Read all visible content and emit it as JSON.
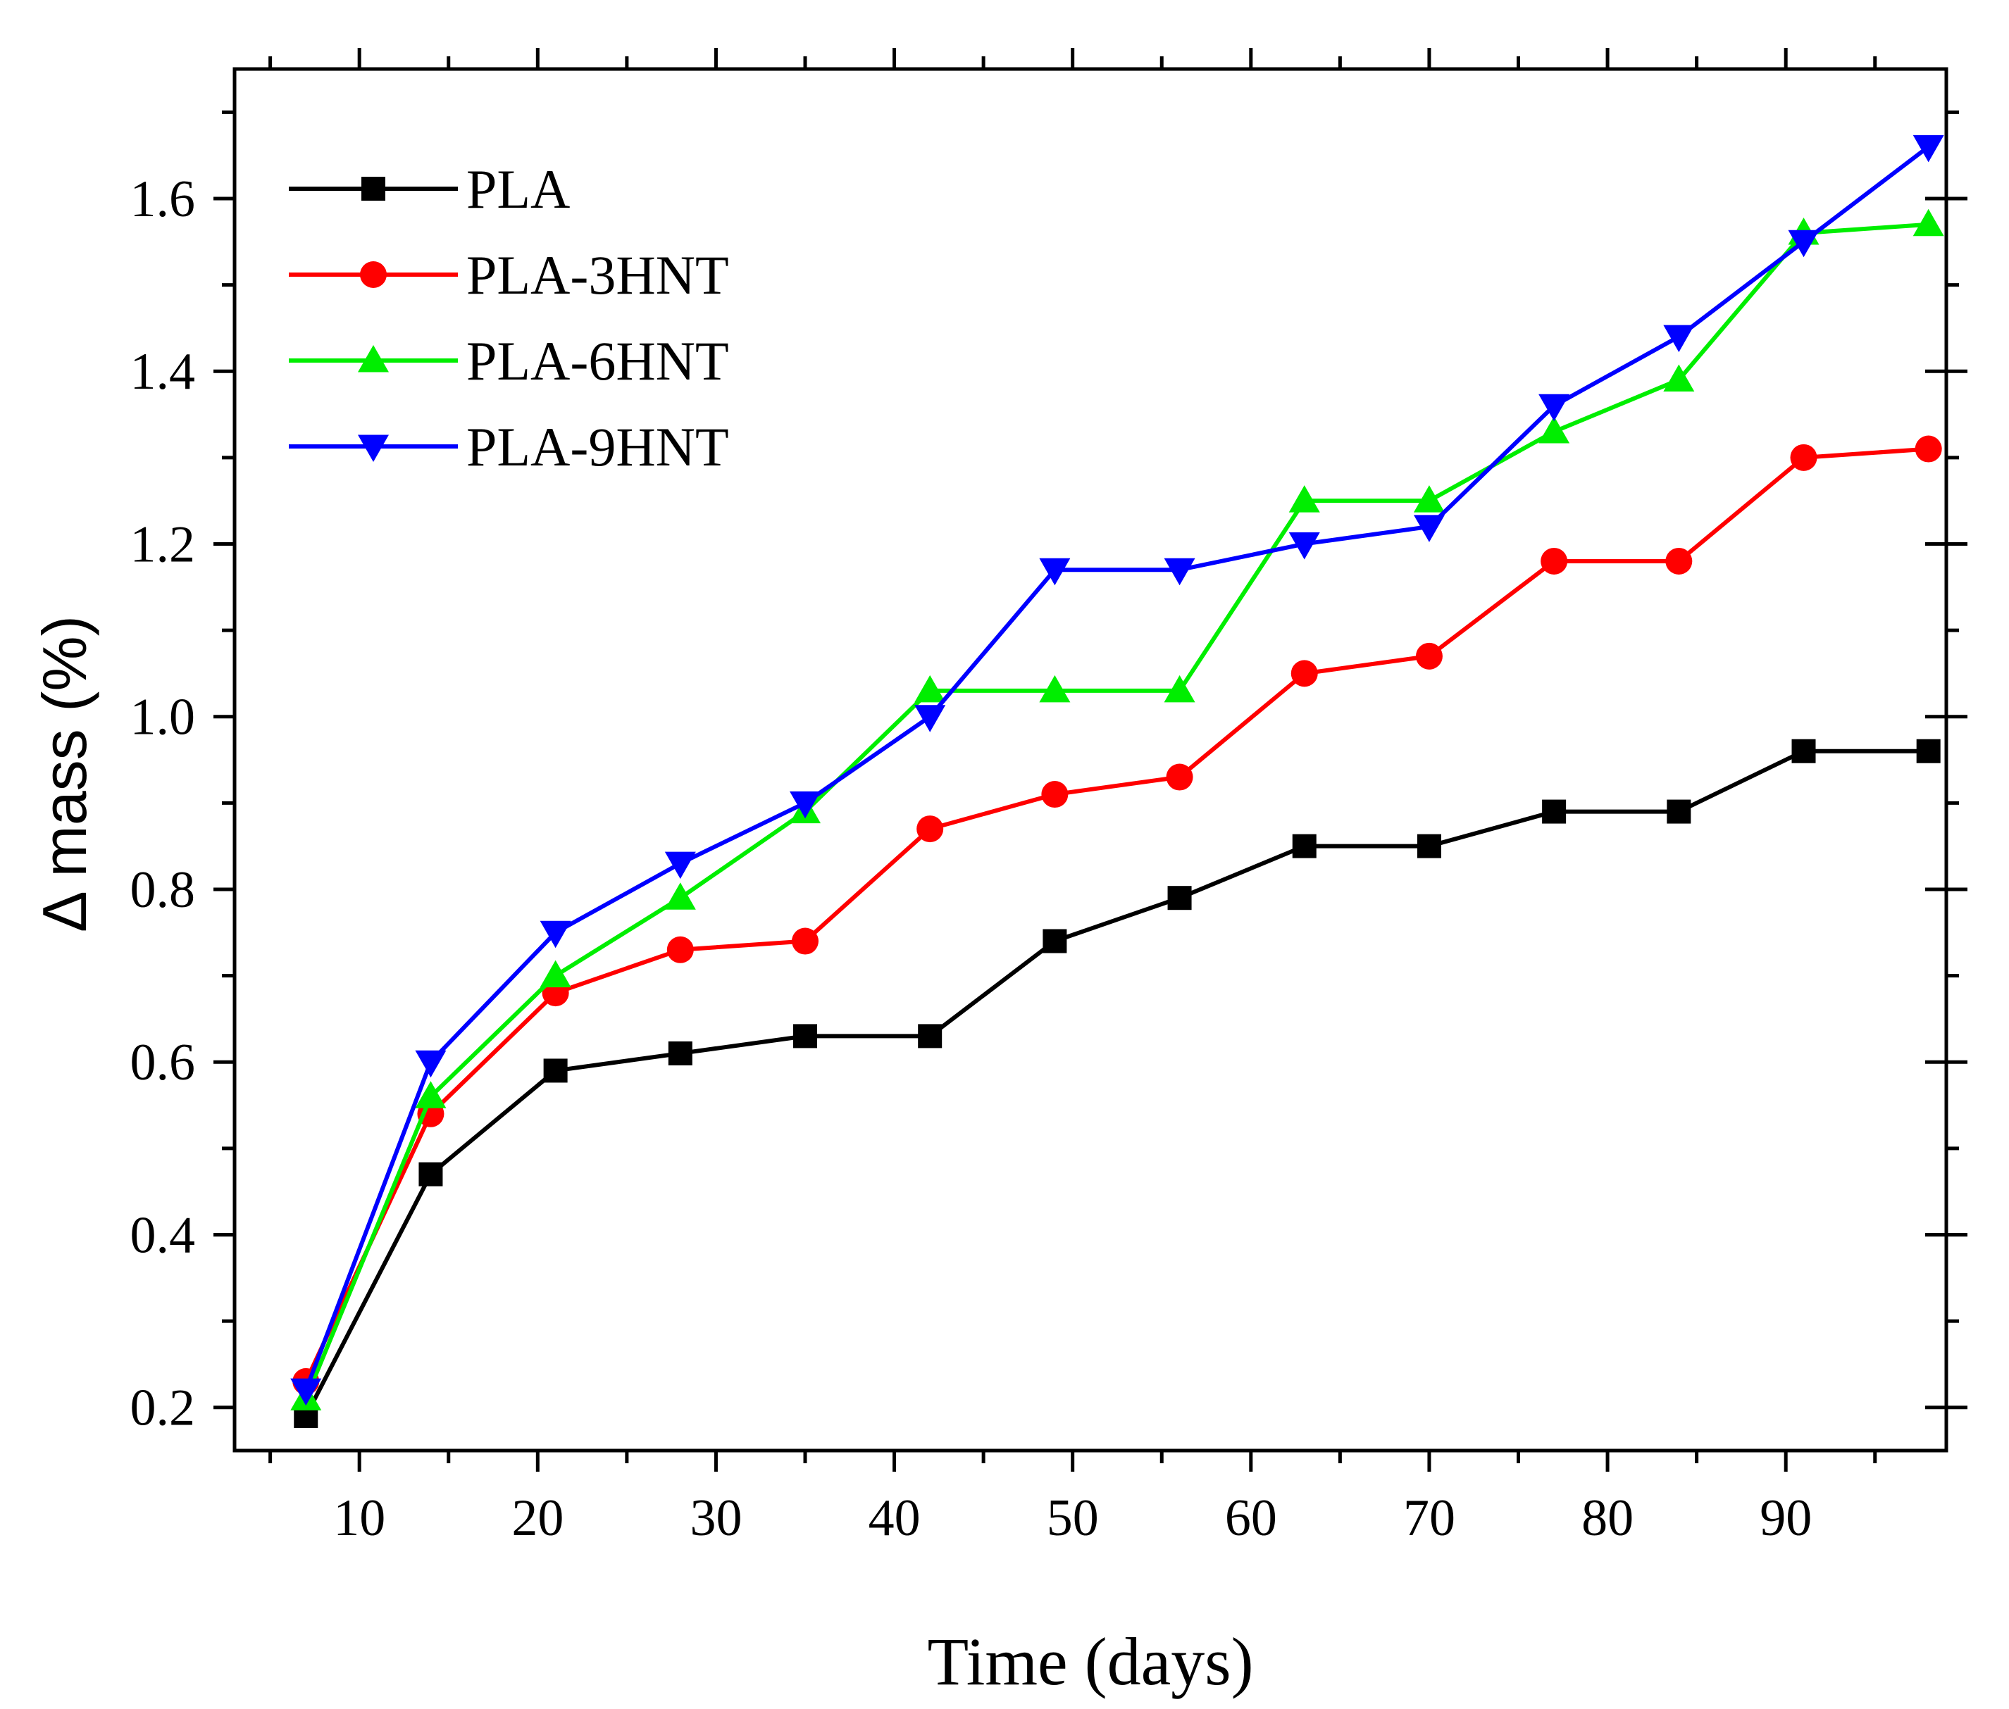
{
  "chart_data": {
    "type": "line",
    "title": "",
    "xlabel": "Time (days)",
    "ylabel": "Δ mass (%)",
    "xlim": [
      3,
      99
    ],
    "ylim": [
      0.15,
      1.75
    ],
    "xticks": [
      10,
      20,
      30,
      40,
      50,
      60,
      70,
      80,
      90
    ],
    "xtick_labels": [
      "10",
      "20",
      "30",
      "40",
      "50",
      "60",
      "70",
      "80",
      "90"
    ],
    "yticks": [
      0.2,
      0.4,
      0.6,
      0.8,
      1.0,
      1.2,
      1.4,
      1.6
    ],
    "ytick_labels": [
      "0.2",
      "0.4",
      "0.6",
      "0.8",
      "1.0",
      "1.2",
      "1.4",
      "1.6"
    ],
    "grid": false,
    "legend_position": "top-left",
    "x": [
      7,
      14,
      21,
      28,
      35,
      42,
      49,
      56,
      63,
      70,
      77,
      84,
      91,
      98
    ],
    "series": [
      {
        "name": "PLA",
        "color": "#000000",
        "marker": "square",
        "values": [
          0.19,
          0.47,
          0.59,
          0.61,
          0.63,
          0.63,
          0.74,
          0.79,
          0.85,
          0.85,
          0.89,
          0.89,
          0.96,
          0.96
        ]
      },
      {
        "name": "PLA-3HNT",
        "color": "#ff0000",
        "marker": "circle",
        "values": [
          0.23,
          0.54,
          0.68,
          0.73,
          0.74,
          0.87,
          0.91,
          0.93,
          1.05,
          1.07,
          1.18,
          1.18,
          1.3,
          1.31
        ]
      },
      {
        "name": "PLA-6HNT",
        "color": "#00ee00",
        "marker": "triangle-up",
        "values": [
          0.21,
          0.56,
          0.7,
          0.79,
          0.89,
          1.03,
          1.03,
          1.03,
          1.25,
          1.25,
          1.33,
          1.39,
          1.56,
          1.57
        ]
      },
      {
        "name": "PLA-9HNT",
        "color": "#0000ff",
        "marker": "triangle-down",
        "values": [
          0.22,
          0.6,
          0.75,
          0.83,
          0.9,
          1.0,
          1.17,
          1.17,
          1.2,
          1.22,
          1.36,
          1.44,
          1.55,
          1.66
        ]
      }
    ]
  }
}
